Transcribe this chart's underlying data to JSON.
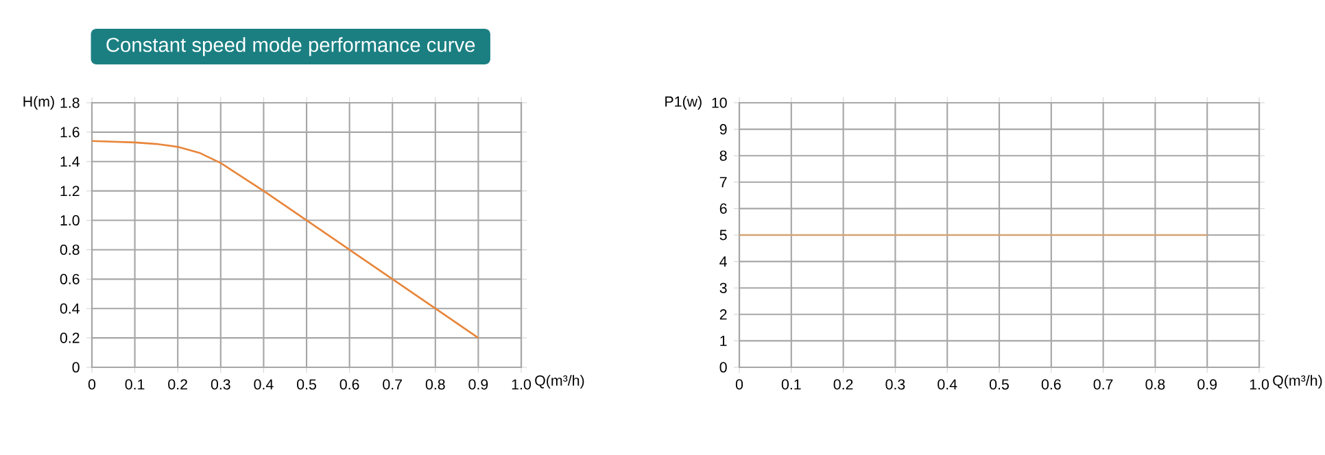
{
  "chart_data": [
    {
      "type": "line",
      "title": "Constant speed mode performance curve",
      "xlabel": "Q(m³/h)",
      "ylabel": "H(m)",
      "x": [
        0,
        0.1,
        0.15,
        0.2,
        0.25,
        0.3,
        0.4,
        0.5,
        0.6,
        0.7,
        0.8,
        0.9
      ],
      "series": [
        {
          "color": "#e8853a",
          "values": [
            1.54,
            1.53,
            1.52,
            1.5,
            1.46,
            1.39,
            1.2,
            1.0,
            0.8,
            0.6,
            0.4,
            0.2
          ]
        }
      ],
      "xlim": [
        0,
        1
      ],
      "ylim": [
        0,
        1.8
      ],
      "xticks": [
        0,
        0.1,
        0.2,
        0.3,
        0.4,
        0.5,
        0.6,
        0.7,
        0.8,
        0.9,
        {
          "value": 1,
          "label": "1.0"
        }
      ],
      "yticks": [
        0,
        0.2,
        0.4,
        0.6,
        0.8,
        {
          "value": 1,
          "label": "1.0"
        },
        1.2,
        1.4,
        1.6,
        1.8
      ],
      "grid": true
    },
    {
      "type": "line",
      "xlabel": "Q(m³/h)",
      "ylabel": "P1(w)",
      "x": [
        0,
        0.9
      ],
      "series": [
        {
          "color": "#d4a373",
          "values": [
            5,
            5
          ]
        }
      ],
      "xlim": [
        0,
        1
      ],
      "ylim": [
        0,
        10
      ],
      "xticks": [
        0,
        0.1,
        0.2,
        0.3,
        0.4,
        0.5,
        0.6,
        0.7,
        0.8,
        0.9,
        {
          "value": 1,
          "label": "1.0"
        }
      ],
      "yticks": [
        0,
        1,
        2,
        3,
        4,
        5,
        6,
        7,
        8,
        9,
        10
      ],
      "grid": true
    }
  ]
}
